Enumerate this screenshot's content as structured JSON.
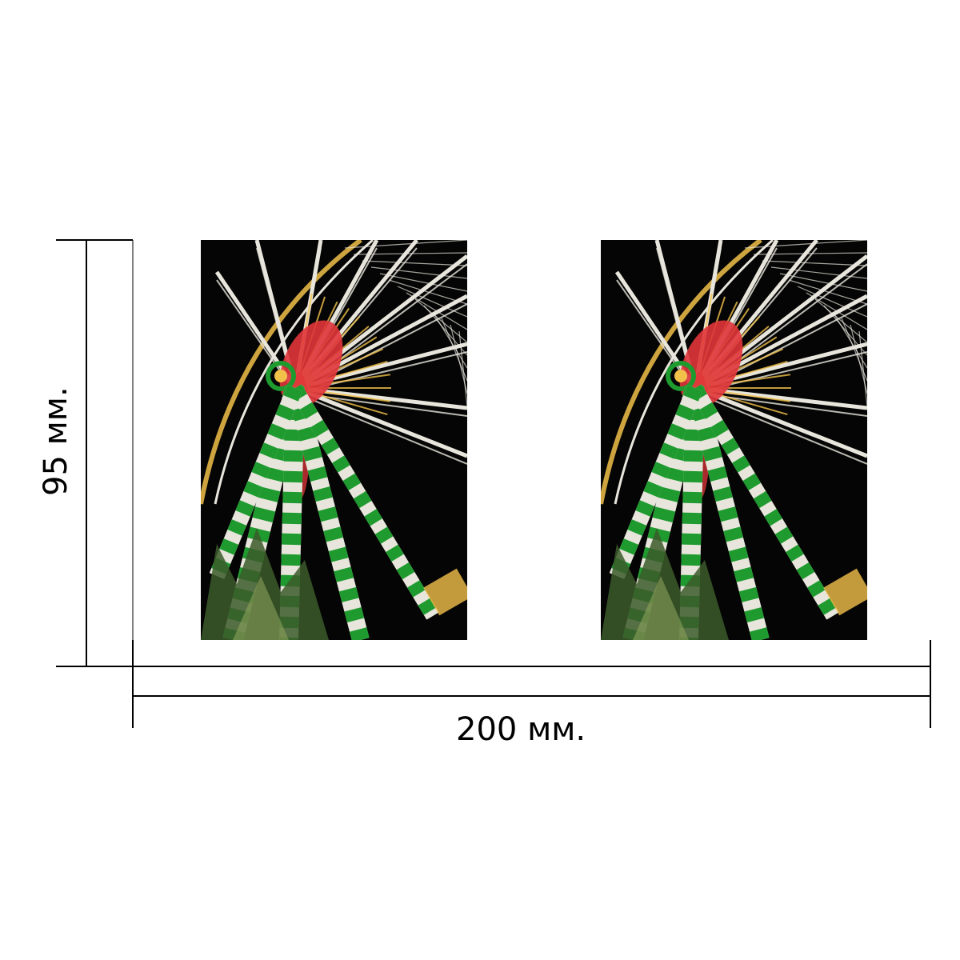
{
  "dimensions": {
    "width_label": "200 мм.",
    "height_label": "95 мм."
  },
  "photos": [
    {
      "subject": "ferris-wheel-night"
    },
    {
      "subject": "ferris-wheel-night"
    }
  ],
  "colors": {
    "background": "#ffffff",
    "line": "#000000",
    "sky": "#050505",
    "green": "#1e9a2e",
    "white_struct": "#e8e6dc",
    "red_hub": "#e0353a",
    "warm_light": "#f2c14a"
  }
}
